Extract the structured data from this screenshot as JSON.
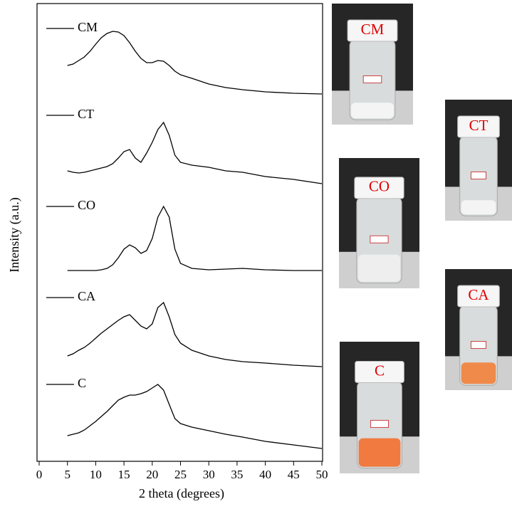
{
  "chart_data": {
    "type": "line",
    "xlabel": "2 theta (degrees)",
    "ylabel": "Intensity (a.u.)",
    "x": [
      5,
      6,
      7,
      8,
      9,
      10,
      11,
      12,
      13,
      14,
      15,
      16,
      17,
      18,
      19,
      20,
      21,
      22,
      23,
      24,
      25,
      27,
      30,
      33,
      36,
      40,
      45,
      50
    ],
    "series": [
      {
        "name": "CM",
        "color": "#000000",
        "values": [
          556,
          558,
          563,
          568,
          576,
          586,
          595,
          601,
          604,
          603,
          598,
          588,
          576,
          566,
          560,
          560,
          563,
          562,
          556,
          548,
          543,
          538,
          530,
          525,
          522,
          519,
          517,
          516
        ]
      },
      {
        "name": "CT",
        "color": "#000000",
        "values": [
          408,
          406,
          405,
          406,
          408,
          410,
          412,
          414,
          418,
          426,
          435,
          438,
          426,
          420,
          433,
          448,
          466,
          476,
          458,
          430,
          420,
          416,
          413,
          408,
          406,
          400,
          396,
          390
        ]
      },
      {
        "name": "CO",
        "color": "#000000",
        "values": [
          268,
          268,
          268,
          268,
          268,
          268,
          269,
          271,
          276,
          286,
          298,
          304,
          300,
          292,
          296,
          313,
          343,
          358,
          343,
          298,
          278,
          271,
          269,
          270,
          271,
          269,
          268,
          268
        ]
      },
      {
        "name": "CA",
        "color": "#000000",
        "values": [
          148,
          151,
          156,
          160,
          166,
          173,
          180,
          186,
          192,
          198,
          203,
          206,
          198,
          190,
          186,
          193,
          216,
          223,
          203,
          178,
          166,
          156,
          148,
          143,
          140,
          138,
          135,
          133
        ]
      },
      {
        "name": "C",
        "color": "#000000",
        "values": [
          36,
          38,
          40,
          44,
          50,
          56,
          63,
          70,
          78,
          86,
          90,
          93,
          93,
          95,
          98,
          103,
          108,
          100,
          80,
          60,
          53,
          48,
          43,
          38,
          34,
          28,
          23,
          18
        ]
      }
    ],
    "xlim": [
      0,
      50
    ],
    "xticks": [
      0,
      5,
      10,
      15,
      20,
      25,
      30,
      35,
      40,
      45,
      50
    ],
    "ylim": [
      0,
      643
    ]
  },
  "photo_labels": [
    "CM",
    "CT",
    "CO",
    "CA",
    "C"
  ]
}
